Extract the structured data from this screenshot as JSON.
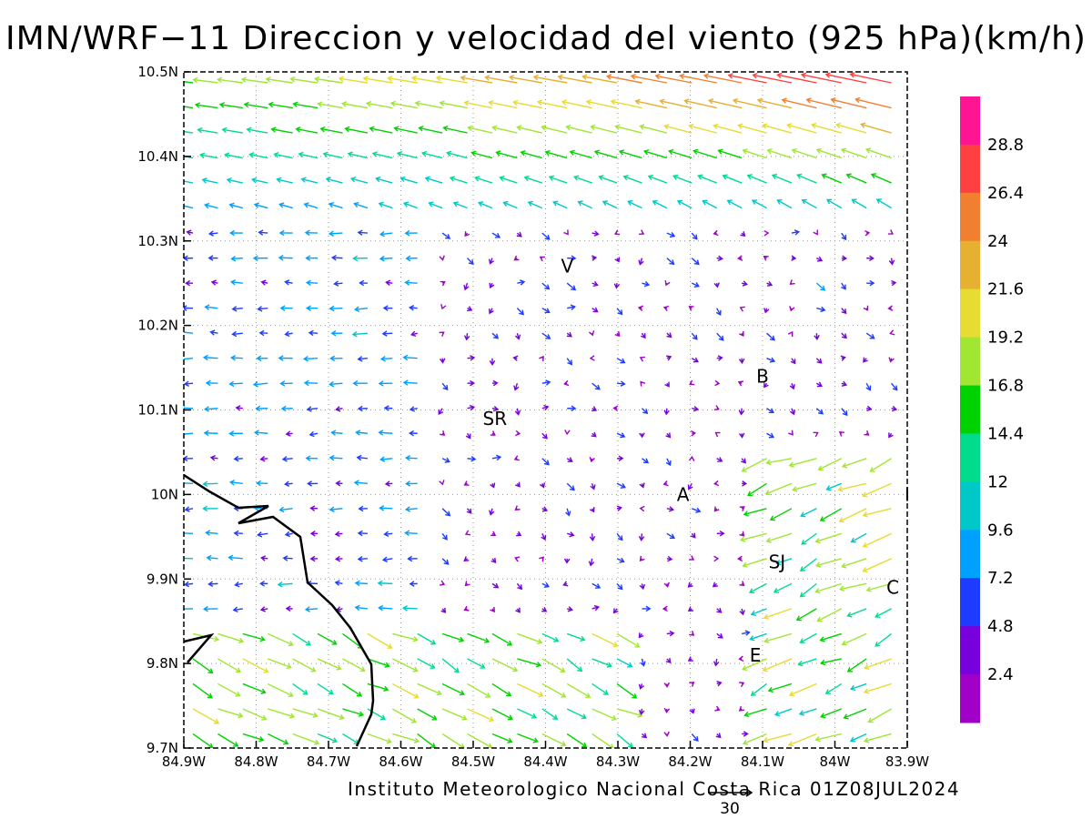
{
  "title": "IMN/WRF−11 Direccion y velocidad del viento (925 hPa)(km/h)",
  "credit": "Instituto Meteorologico Nacional Costa Rica 01Z08JUL2024",
  "reference_vector": {
    "label": "30",
    "value_kmh": 30
  },
  "map": {
    "lon_range": [
      -84.9,
      -83.9
    ],
    "lat_range": [
      9.7,
      10.5
    ],
    "x_tick_labels": [
      "84.9W",
      "84.8W",
      "84.7W",
      "84.6W",
      "84.5W",
      "84.4W",
      "84.3W",
      "84.2W",
      "84.1W",
      "84W",
      "83.9W"
    ],
    "y_tick_labels": [
      "9.7N",
      "9.8N",
      "9.9N",
      "10N",
      "10.1N",
      "10.2N",
      "10.3N",
      "10.4N",
      "10.5N"
    ],
    "grid": true,
    "places": [
      {
        "label": "V",
        "lon": -84.37,
        "lat": 10.27
      },
      {
        "label": "B",
        "lon": -84.1,
        "lat": 10.14
      },
      {
        "label": "SR",
        "lon": -84.47,
        "lat": 10.09
      },
      {
        "label": "A",
        "lon": -84.21,
        "lat": 10.0
      },
      {
        "label": "I",
        "lon": -83.9,
        "lat": 10.0
      },
      {
        "label": "SJ",
        "lon": -84.08,
        "lat": 9.92
      },
      {
        "label": "C",
        "lon": -83.92,
        "lat": 9.89
      },
      {
        "label": "E",
        "lon": -84.11,
        "lat": 9.81
      }
    ]
  },
  "colorbar": {
    "labels": [
      "28.8",
      "26.4",
      "24",
      "21.6",
      "19.2",
      "16.8",
      "14.4",
      "12",
      "9.6",
      "7.2",
      "4.8",
      "2.4"
    ],
    "colors": [
      "#ff1493",
      "#ff4040",
      "#f08030",
      "#e6b030",
      "#e6dc32",
      "#a0e632",
      "#00d200",
      "#00dc8c",
      "#00c8c8",
      "#00a0ff",
      "#1e3cff",
      "#7800dc",
      "#a000c8"
    ]
  }
}
